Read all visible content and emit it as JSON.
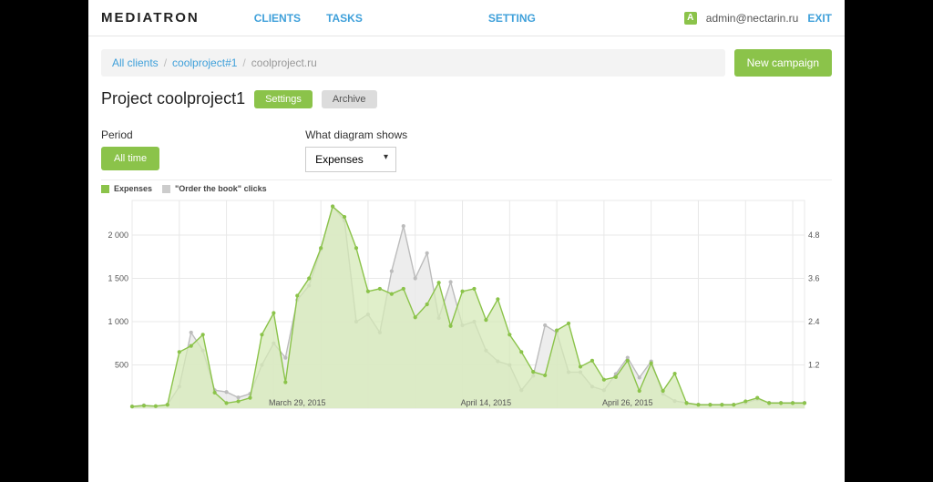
{
  "header": {
    "logo": "MEDIATRON",
    "nav": {
      "clients": "CLIENTS",
      "tasks": "TASKS",
      "setting": "SETTING"
    },
    "user_badge": "A",
    "user_email": "admin@nectarin.ru",
    "exit": "EXIT"
  },
  "breadcrumb": {
    "level1": "All clients",
    "level2": "coolproject#1",
    "current": "coolproject.ru"
  },
  "new_campaign": "New campaign",
  "page_title": "Project coolproject1",
  "buttons": {
    "settings": "Settings",
    "archive": "Archive"
  },
  "controls": {
    "period_label": "Period",
    "period_value": "All time",
    "metric_label": "What diagram shows",
    "metric_value": "Expenses"
  },
  "chart": {
    "type": "line-area-dual-axis",
    "legend_series1": "Expenses",
    "legend_series2": "\"Order the book\" clicks",
    "colors": {
      "series1_line": "#8bc34a",
      "series1_fill": "#d6eab8",
      "series2_line": "#bcbcbc",
      "series2_fill": "#e9e9e9",
      "grid": "#e8e8e8",
      "axis_text": "#555555",
      "background": "#ffffff"
    },
    "y_left": {
      "min": 0,
      "max": 2400,
      "ticks": [
        500,
        1000,
        1500,
        2000
      ],
      "tick_labels": [
        "500",
        "1 000",
        "1 500",
        "2 000"
      ]
    },
    "y_right": {
      "min": 0,
      "max": 5.76,
      "ticks": [
        1.2,
        2.4,
        3.6,
        4.8
      ],
      "tick_labels": [
        "1.2",
        "2.4",
        "3.6",
        "4.8"
      ]
    },
    "x_ticks": [
      {
        "index": 14,
        "label": "March 29, 2015"
      },
      {
        "index": 30,
        "label": "April 14, 2015"
      },
      {
        "index": 42,
        "label": "April 26, 2015"
      }
    ],
    "n_points": 58,
    "series1_values": [
      20,
      30,
      25,
      40,
      650,
      720,
      850,
      180,
      60,
      80,
      120,
      850,
      1100,
      300,
      1300,
      1500,
      1850,
      2330,
      2210,
      1850,
      1350,
      1380,
      1320,
      1380,
      1050,
      1200,
      1450,
      950,
      1350,
      1380,
      1020,
      1260,
      850,
      650,
      420,
      380,
      900,
      980,
      480,
      550,
      330,
      360,
      550,
      200,
      520,
      200,
      400,
      60,
      40,
      40,
      40,
      40,
      80,
      120,
      60,
      60,
      60,
      60
    ],
    "series2_values": [
      0.05,
      0.08,
      0.05,
      0.1,
      0.6,
      2.1,
      1.6,
      0.5,
      0.45,
      0.3,
      0.4,
      1.2,
      1.8,
      1.4,
      3.0,
      3.4,
      4.4,
      5.6,
      5.2,
      2.4,
      2.6,
      2.1,
      3.8,
      5.05,
      3.6,
      4.3,
      2.5,
      3.5,
      2.3,
      2.4,
      1.6,
      1.3,
      1.2,
      0.5,
      0.9,
      2.3,
      2.1,
      1.0,
      1.0,
      0.6,
      0.5,
      0.95,
      1.4,
      0.85,
      1.3,
      0.4,
      0.2,
      0.15,
      0.1,
      0.1,
      0.1,
      0.1,
      0.15,
      0.25,
      0.15,
      0.15,
      0.15,
      0.15
    ],
    "marker_radius": 2.1,
    "line_width": 1.4
  }
}
